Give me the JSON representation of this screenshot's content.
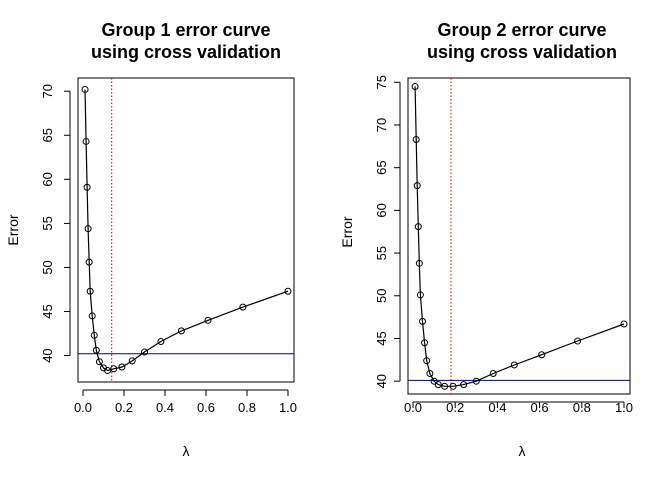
{
  "chart_data": [
    {
      "type": "line",
      "title": [
        "Group 1 error curve",
        "using cross validation"
      ],
      "xlabel": "λ",
      "ylabel": "Error",
      "xlim": [
        0,
        1.0
      ],
      "ylim": [
        37,
        71.5
      ],
      "x_ticks": [
        "0.0",
        "0.2",
        "0.4",
        "0.6",
        "0.8",
        "1.0"
      ],
      "y_ticks": [
        "40",
        "45",
        "50",
        "55",
        "60",
        "65",
        "70"
      ],
      "grid": false,
      "series": [
        {
          "style": "line-with-open-circles",
          "color": "#000000",
          "x": [
            0.01,
            0.015,
            0.02,
            0.025,
            0.03,
            0.035,
            0.045,
            0.055,
            0.065,
            0.08,
            0.1,
            0.12,
            0.15,
            0.19,
            0.24,
            0.3,
            0.38,
            0.48,
            0.61,
            0.78,
            1.0
          ],
          "y": [
            70.2,
            64.3,
            59.1,
            54.4,
            50.6,
            47.3,
            44.5,
            42.3,
            40.6,
            39.3,
            38.6,
            38.3,
            38.5,
            38.7,
            39.4,
            40.4,
            41.6,
            42.8,
            44.0,
            45.5,
            47.3
          ]
        }
      ],
      "reference_lines": [
        {
          "orientation": "vertical",
          "value": 0.14,
          "color": "#cc0000",
          "style": "dotted"
        },
        {
          "orientation": "horizontal",
          "value": 40.2,
          "color": "#00008b",
          "style": "solid"
        }
      ]
    },
    {
      "type": "line",
      "title": [
        "Group 2 error curve",
        "using cross validation"
      ],
      "xlabel": "λ",
      "ylabel": "Error",
      "xlim": [
        0,
        1.0
      ],
      "ylim": [
        38.5,
        75.5
      ],
      "x_ticks": [
        "0.0",
        "0.2",
        "0.4",
        "0.6",
        "0.8",
        "1.0"
      ],
      "y_ticks": [
        "40",
        "45",
        "50",
        "55",
        "60",
        "65",
        "70",
        "75"
      ],
      "grid": false,
      "series": [
        {
          "style": "line-with-open-circles",
          "color": "#000000",
          "x": [
            0.01,
            0.015,
            0.02,
            0.025,
            0.03,
            0.035,
            0.045,
            0.055,
            0.065,
            0.08,
            0.1,
            0.12,
            0.15,
            0.19,
            0.24,
            0.3,
            0.38,
            0.48,
            0.61,
            0.78,
            1.0
          ],
          "y": [
            74.5,
            68.3,
            62.9,
            58.1,
            53.8,
            50.1,
            47.0,
            44.5,
            42.4,
            40.9,
            40.0,
            39.6,
            39.4,
            39.4,
            39.6,
            40.0,
            40.9,
            41.9,
            43.1,
            44.7,
            46.7
          ]
        }
      ],
      "reference_lines": [
        {
          "orientation": "vertical",
          "value": 0.18,
          "color": "#cc0000",
          "style": "dotted"
        },
        {
          "orientation": "horizontal",
          "value": 40.1,
          "color": "#00008b",
          "style": "solid"
        }
      ]
    }
  ]
}
